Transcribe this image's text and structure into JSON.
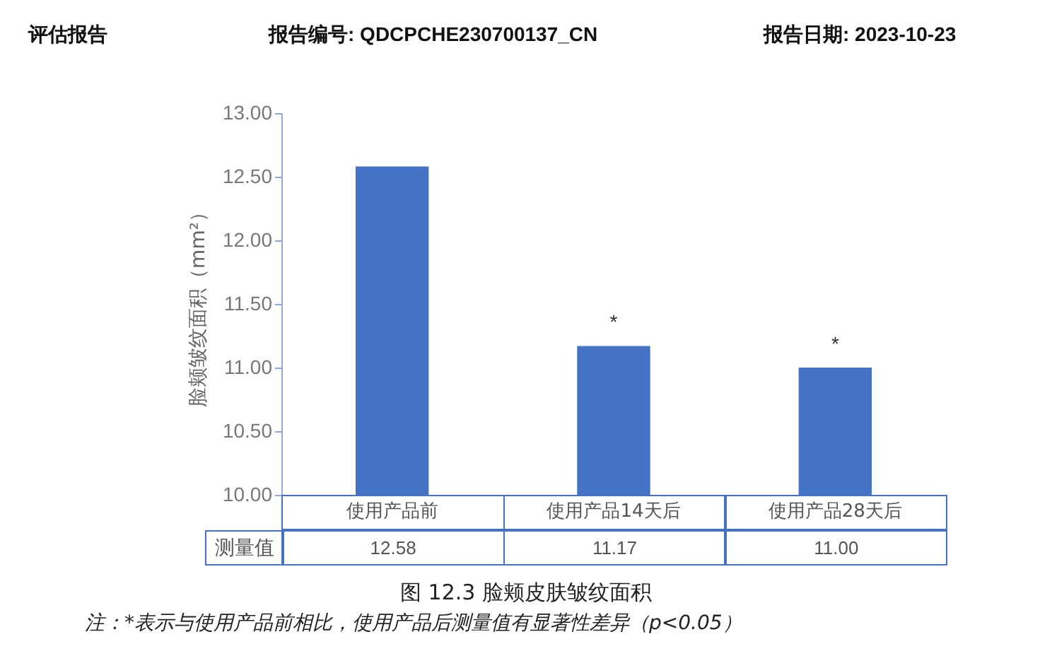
{
  "chart_data": {
    "type": "bar",
    "title": "图 12.3 脸颊皮肤皱纹面积",
    "ylabel": "脸颊皱纹面积（mm²）",
    "categories": [
      "使用产品前",
      "使用产品14天后",
      "使用产品28天后"
    ],
    "values": [
      12.58,
      11.17,
      11.0
    ],
    "color": "#4472c4",
    "ylim": [
      10,
      13
    ],
    "yticks": [
      {
        "value": 10,
        "label": "10.00"
      },
      {
        "value": 10.5,
        "label": "10.50"
      },
      {
        "value": 11,
        "label": "11.00"
      },
      {
        "value": 11.5,
        "label": "11.50"
      },
      {
        "value": 12,
        "label": "12.00"
      },
      {
        "value": 12.5,
        "label": "12.50"
      },
      {
        "value": 13,
        "label": "13.00"
      }
    ],
    "data_labels": true,
    "value_labels": [
      "12.58",
      "11.17",
      "11.00"
    ],
    "annotations": [
      "评估报告",
      "报告编号: QDCPCHE230700137_CN",
      "报告日期: 2023-10-23",
      "测量值",
      {
        "text": "*",
        "x": "使用产品14天后",
        "y": 11.17
      },
      {
        "text": "*",
        "x": "使用产品28天后",
        "y": 11.0
      },
      "注：*表示与使用产品前相比，使用产品后测量值有显著性差异（p<0.05）"
    ],
    "grid": false
  }
}
